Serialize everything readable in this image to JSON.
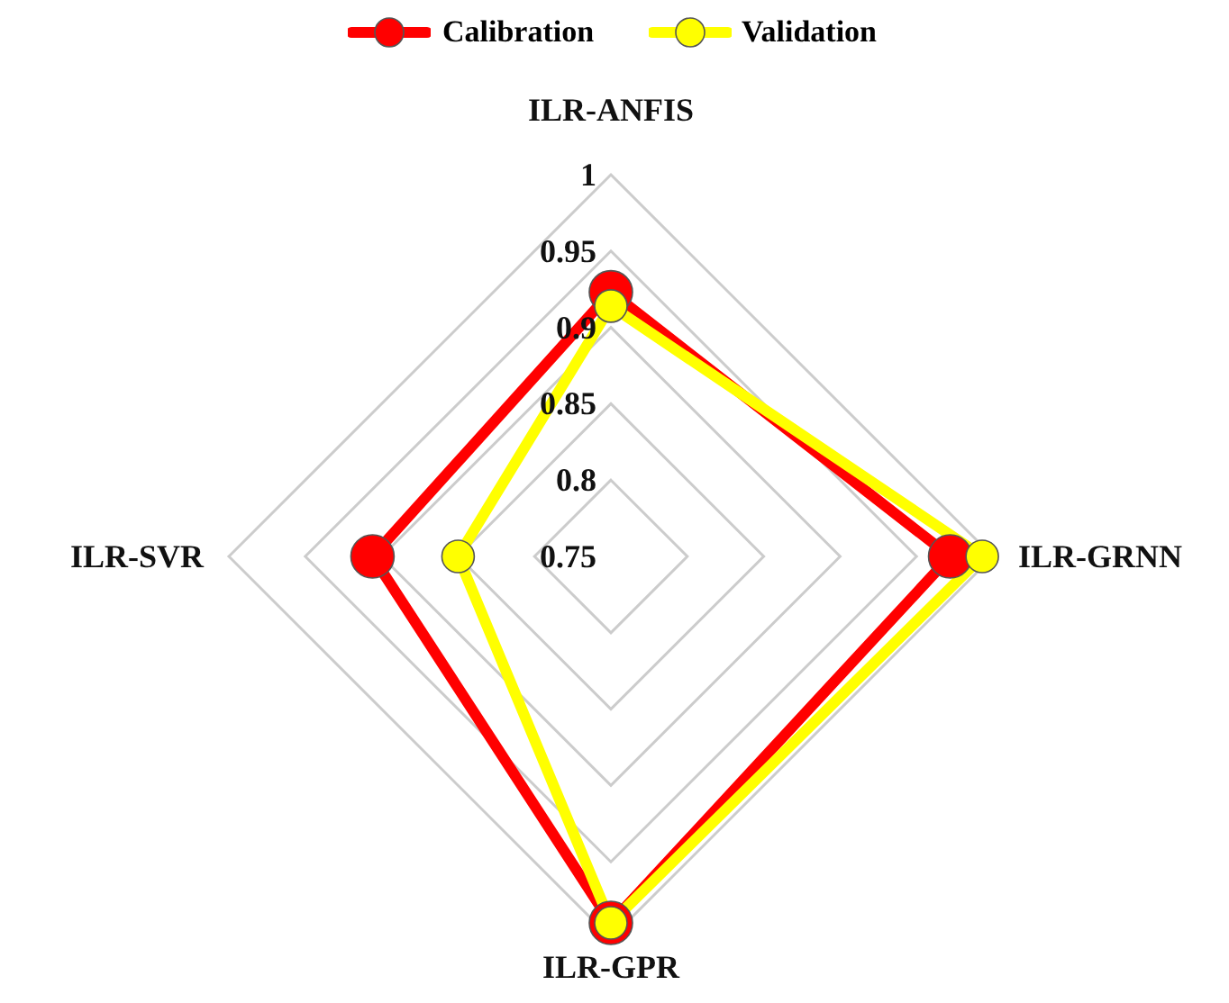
{
  "chart_data": {
    "type": "radar",
    "categories": [
      "ILR-ANFIS",
      "ILR-GRNN",
      "ILR-GPR",
      "ILR-SVR"
    ],
    "series": [
      {
        "name": "Calibration",
        "color": "#ff0000",
        "values": [
          0.923,
          0.972,
          0.99,
          0.906
        ]
      },
      {
        "name": "Validation",
        "color": "#ffff00",
        "values": [
          0.914,
          0.993,
          0.99,
          0.85
        ]
      }
    ],
    "ylim": [
      0.75,
      1
    ],
    "yticks": [
      0.75,
      0.8,
      0.85,
      0.9,
      0.95,
      1
    ],
    "grid": true,
    "legend": "top",
    "marker": "circle",
    "line_style": "solid"
  }
}
